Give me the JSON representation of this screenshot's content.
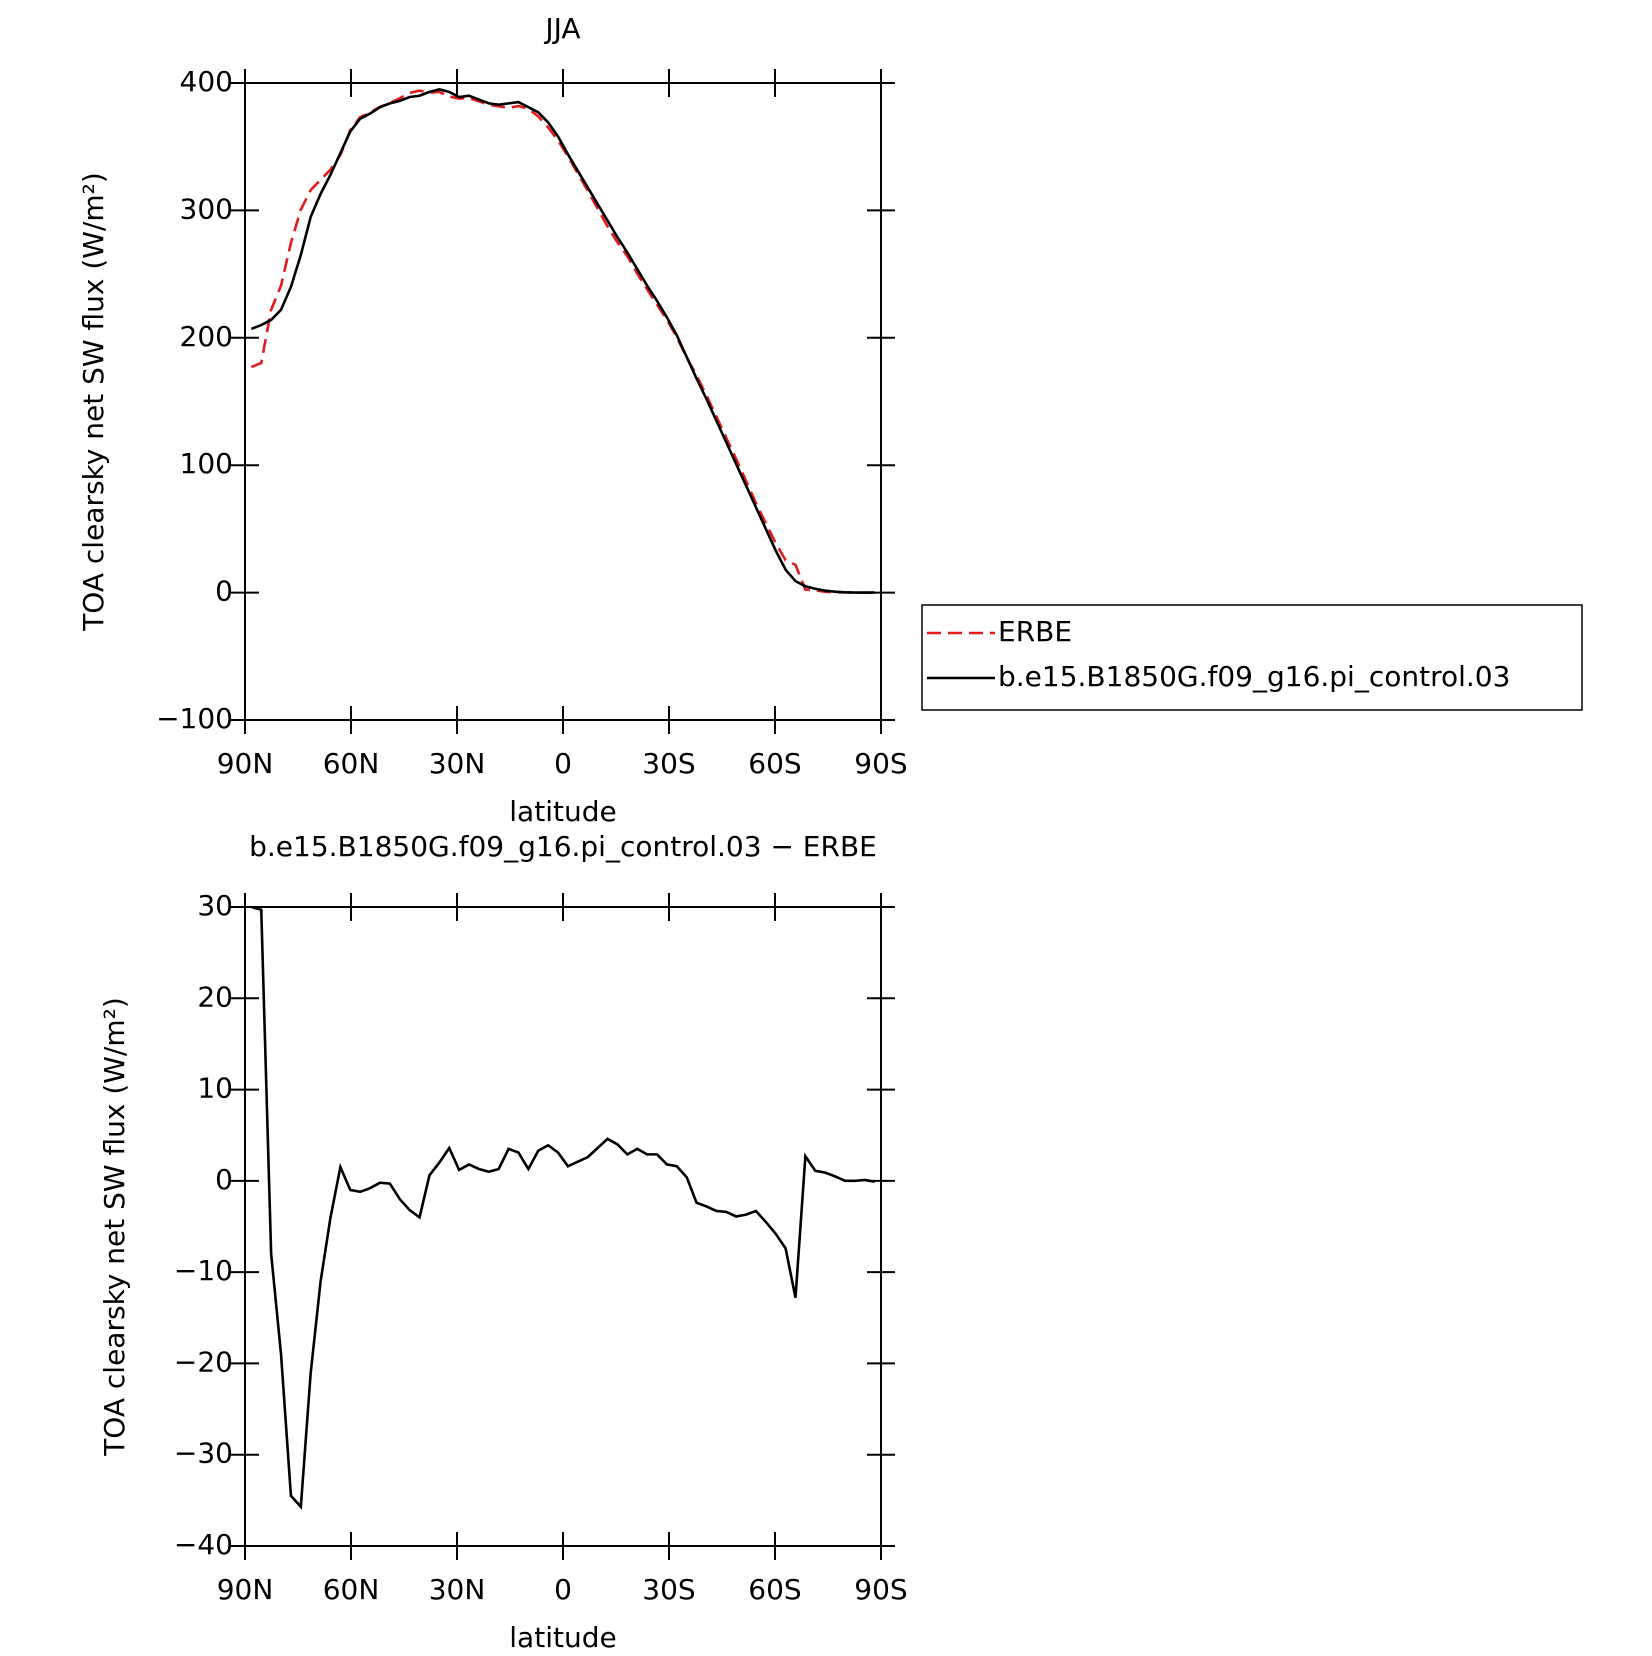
{
  "chart_data": [
    {
      "type": "line",
      "title": "JJA",
      "xlabel": "latitude",
      "ylabel": "TOA clearsky net SW flux (W/m²)",
      "x": [
        88.2,
        85.4,
        82.6,
        79.8,
        77.0,
        74.2,
        71.4,
        68.6,
        65.8,
        63.0,
        60.2,
        57.4,
        54.6,
        51.8,
        49.0,
        46.2,
        43.4,
        40.6,
        37.8,
        35.0,
        32.2,
        29.4,
        26.6,
        23.8,
        21.0,
        18.2,
        15.4,
        12.6,
        9.8,
        7.0,
        4.2,
        1.4,
        -1.4,
        -4.2,
        -7.0,
        -9.8,
        -12.6,
        -15.4,
        -18.2,
        -21.0,
        -23.8,
        -26.6,
        -29.4,
        -32.2,
        -35.0,
        -37.8,
        -40.6,
        -43.4,
        -46.2,
        -49.0,
        -51.8,
        -54.6,
        -57.4,
        -60.2,
        -63.0,
        -65.8,
        -68.6,
        -71.4,
        -74.2,
        -77.0,
        -79.8,
        -82.6,
        -85.4,
        -88.2
      ],
      "series": [
        {
          "name": "ERBE",
          "color": "#e41a1c",
          "dash": "dashed",
          "values": [
            177,
            180.3,
            222,
            241,
            274.5,
            300.7,
            316,
            324,
            332,
            343.5,
            363,
            373.2,
            376.8,
            381.2,
            384.3,
            388,
            392.2,
            394,
            392.4,
            393,
            389.4,
            387.8,
            388.2,
            385.7,
            383,
            381.7,
            380.5,
            381.9,
            379.7,
            373.7,
            365.1,
            354.9,
            342.4,
            328.9,
            315.4,
            301.4,
            287.4,
            275,
            264.1,
            250.5,
            238.1,
            226.1,
            214.2,
            200.4,
            184.6,
            170.4,
            154.8,
            138.3,
            121.4,
            104.9,
            87.7,
            70.3,
            54.5,
            38.8,
            25.4,
            21.8,
            2.3,
            1.9,
            0.6,
            0.2,
            0.2,
            0,
            -0.1,
            0.1
          ]
        },
        {
          "name": "b.e15.B1850G.f09_g16.pi_control.03",
          "color": "#000000",
          "dash": "solid",
          "values": [
            207,
            210,
            214,
            222,
            240,
            265,
            295,
            313,
            328,
            345,
            362,
            372,
            376,
            381,
            384,
            386,
            389,
            390,
            393,
            395,
            393,
            389,
            390,
            387,
            384,
            383,
            384,
            385,
            381,
            377,
            369,
            358,
            344,
            331,
            318,
            305,
            292,
            279,
            267,
            254,
            241,
            229,
            216,
            202,
            185,
            168,
            152,
            135,
            118,
            101,
            84,
            67,
            50,
            33,
            18,
            9,
            5,
            3,
            1.5,
            0.7,
            0.2,
            0,
            0,
            0
          ]
        }
      ],
      "xlim": [
        90,
        -90
      ],
      "ylim": [
        -100,
        400
      ],
      "xticks": [
        {
          "value": 90,
          "label": "90N"
        },
        {
          "value": 60,
          "label": "60N"
        },
        {
          "value": 30,
          "label": "30N"
        },
        0,
        {
          "value": -30,
          "label": "30S"
        },
        {
          "value": -60,
          "label": "60S"
        },
        {
          "value": -90,
          "label": "90S"
        }
      ],
      "yticks": [
        {
          "value": -100,
          "label": "−100"
        },
        0,
        100,
        200,
        300,
        400
      ],
      "legend": "right"
    },
    {
      "type": "line",
      "title": "b.e15.B1850G.f09_g16.pi_control.03 − ERBE",
      "xlabel": "latitude",
      "ylabel": "TOA clearsky net SW flux (W/m²)",
      "x": [
        88.2,
        85.4,
        82.6,
        79.8,
        77.0,
        74.2,
        71.4,
        68.6,
        65.8,
        63.0,
        60.2,
        57.4,
        54.6,
        51.8,
        49.0,
        46.2,
        43.4,
        40.6,
        37.8,
        35.0,
        32.2,
        29.4,
        26.6,
        23.8,
        21.0,
        18.2,
        15.4,
        12.6,
        9.8,
        7.0,
        4.2,
        1.4,
        -1.4,
        -4.2,
        -7.0,
        -9.8,
        -12.6,
        -15.4,
        -18.2,
        -21.0,
        -23.8,
        -26.6,
        -29.4,
        -32.2,
        -35.0,
        -37.8,
        -40.6,
        -43.4,
        -46.2,
        -49.0,
        -51.8,
        -54.6,
        -57.4,
        -60.2,
        -63.0,
        -65.8,
        -68.6,
        -71.4,
        -74.2,
        -77.0,
        -79.8,
        -82.6,
        -85.4,
        -88.2
      ],
      "series": [
        {
          "color": "#000000",
          "dash": "solid",
          "values": [
            30,
            29.7,
            -8,
            -19,
            -34.5,
            -35.7,
            -21,
            -11,
            -4,
            1.5,
            -1,
            -1.2,
            -0.8,
            -0.2,
            -0.3,
            -2,
            -3.2,
            -4,
            0.6,
            2,
            3.6,
            1.2,
            1.8,
            1.3,
            1,
            1.3,
            3.5,
            3.1,
            1.3,
            3.3,
            3.9,
            3.1,
            1.6,
            2.1,
            2.6,
            3.6,
            4.6,
            4,
            2.9,
            3.5,
            2.9,
            2.9,
            1.8,
            1.6,
            0.4,
            -2.4,
            -2.8,
            -3.3,
            -3.4,
            -3.9,
            -3.7,
            -3.3,
            -4.5,
            -5.8,
            -7.4,
            -12.8,
            2.7,
            1.1,
            0.9,
            0.5,
            0,
            0,
            0.1,
            -0.1
          ]
        }
      ],
      "xlim": [
        90,
        -90
      ],
      "ylim": [
        -40,
        30
      ],
      "xticks": [
        {
          "value": 90,
          "label": "90N"
        },
        {
          "value": 60,
          "label": "60N"
        },
        {
          "value": 30,
          "label": "30N"
        },
        0,
        {
          "value": -30,
          "label": "30S"
        },
        {
          "value": -60,
          "label": "60S"
        },
        {
          "value": -90,
          "label": "90S"
        }
      ],
      "yticks": [
        {
          "value": -40,
          "label": "−40"
        },
        {
          "value": -30,
          "label": "−30"
        },
        {
          "value": -20,
          "label": "−20"
        },
        {
          "value": -10,
          "label": "−10"
        },
        0,
        10,
        20,
        30
      ]
    }
  ]
}
